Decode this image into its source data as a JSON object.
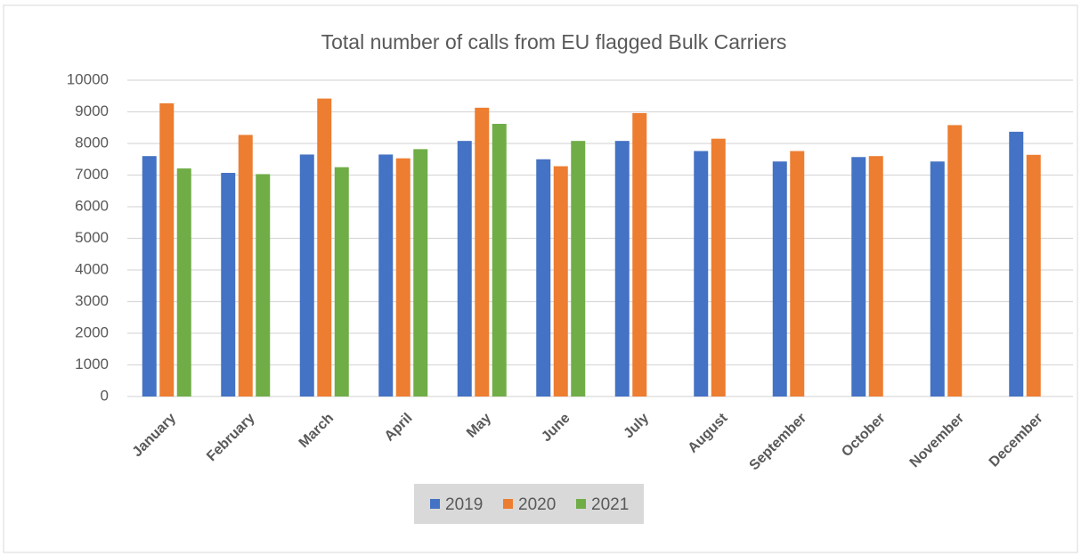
{
  "chart_data": {
    "type": "bar",
    "title": "Total number of calls from EU flagged Bulk Carriers",
    "categories": [
      "January",
      "February",
      "March",
      "April",
      "May",
      "June",
      "July",
      "August",
      "September",
      "October",
      "November",
      "December"
    ],
    "series": [
      {
        "name": "2019",
        "color": "#4472c4",
        "values": [
          7600,
          7070,
          7650,
          7650,
          8080,
          7500,
          8080,
          7760,
          7430,
          7570,
          7430,
          8370
        ]
      },
      {
        "name": "2020",
        "color": "#ed7d31",
        "values": [
          9270,
          8270,
          9420,
          7530,
          9130,
          7280,
          8960,
          8150,
          7760,
          7600,
          8580,
          7640
        ]
      },
      {
        "name": "2021",
        "color": "#70ad47",
        "values": [
          7210,
          7030,
          7250,
          7820,
          8620,
          8080,
          null,
          null,
          null,
          null,
          null,
          null
        ]
      }
    ],
    "ylim": [
      0,
      10000
    ],
    "yticks": [
      0,
      1000,
      2000,
      3000,
      4000,
      5000,
      6000,
      7000,
      8000,
      9000,
      10000
    ],
    "grid": true,
    "legend": "bottom"
  }
}
